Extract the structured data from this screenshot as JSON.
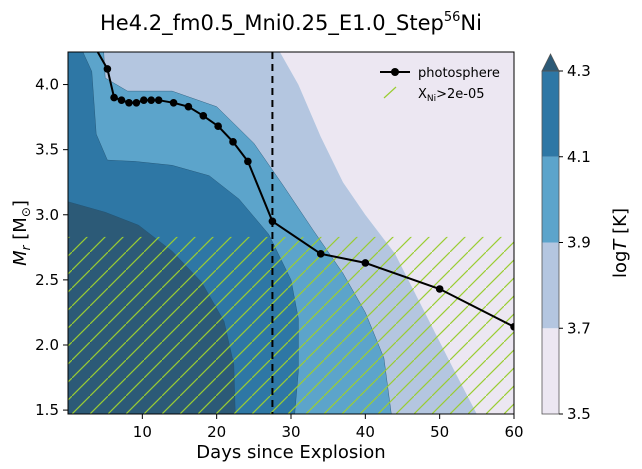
{
  "chart_data": {
    "type": "contour",
    "title": "He4.2_fm0.5_Mni0.25_E1.0_Step",
    "title_sup": "56",
    "title_tail": "Ni",
    "xlabel": "Days since Explosion",
    "ylabel_main": "M",
    "ylabel_sub": "r",
    "ylabel_unit": "[M",
    "ylabel_unit_sub": "⊙",
    "ylabel_close": "]",
    "xlim": [
      0,
      60
    ],
    "ylim": [
      1.47,
      4.25
    ],
    "xticks": [
      "10",
      "20",
      "30",
      "40",
      "50",
      "60"
    ],
    "xtick_values": [
      10,
      20,
      30,
      40,
      50,
      60
    ],
    "yticks": [
      "1.5",
      "2.0",
      "2.5",
      "3.0",
      "3.5",
      "4.0"
    ],
    "ytick_values": [
      1.5,
      2.0,
      2.5,
      3.0,
      3.5,
      4.0
    ],
    "colorbar": {
      "label_pre": "log",
      "label_var": "T",
      "label_unit": "[K]",
      "levels": [
        3.5,
        3.7,
        3.9,
        4.1,
        4.3
      ],
      "tick_labels": [
        "3.5",
        "3.7",
        "3.9",
        "4.1",
        "4.3"
      ],
      "colors": [
        "#ece7f2",
        "#b4c6e0",
        "#5ca4cb",
        "#2e77a5",
        "#2c5a77"
      ],
      "extend": "max"
    },
    "contour_regions": [
      {
        "level": "3.5-3.7",
        "color": "#ece7f2",
        "boundary": [
          [
            28.5,
            4.25
          ],
          [
            31,
            4.0
          ],
          [
            34,
            3.6
          ],
          [
            37,
            3.25
          ],
          [
            40,
            3.0
          ],
          [
            44,
            2.7
          ],
          [
            48,
            2.25
          ],
          [
            52,
            1.8
          ],
          [
            55,
            1.47
          ],
          [
            60,
            1.47
          ],
          [
            60,
            4.25
          ]
        ]
      },
      {
        "level": "3.7-3.9",
        "color": "#b4c6e0",
        "boundary": [
          [
            0,
            4.25
          ],
          [
            28.5,
            4.25
          ],
          [
            31,
            4.0
          ],
          [
            34,
            3.6
          ],
          [
            37,
            3.25
          ],
          [
            40,
            3.0
          ],
          [
            44,
            2.7
          ],
          [
            48,
            2.25
          ],
          [
            52,
            1.8
          ],
          [
            55,
            1.47
          ],
          [
            0,
            1.47
          ]
        ]
      },
      {
        "level": "3.9-4.1",
        "color": "#5ca4cb",
        "boundary": [
          [
            0,
            4.25
          ],
          [
            4.8,
            4.25
          ],
          [
            5,
            4.05
          ],
          [
            8,
            3.95
          ],
          [
            14,
            3.95
          ],
          [
            20,
            3.83
          ],
          [
            25,
            3.55
          ],
          [
            29,
            3.22
          ],
          [
            33,
            2.88
          ],
          [
            37,
            2.55
          ],
          [
            40,
            2.25
          ],
          [
            42.5,
            1.9
          ],
          [
            43.5,
            1.47
          ],
          [
            0,
            1.47
          ]
        ]
      },
      {
        "level": "4.1-4.3",
        "color": "#2e77a5",
        "boundary": [
          [
            0,
            4.25
          ],
          [
            2,
            4.25
          ],
          [
            3.2,
            4.1
          ],
          [
            3.8,
            3.62
          ],
          [
            5.3,
            3.42
          ],
          [
            9,
            3.41
          ],
          [
            14,
            3.38
          ],
          [
            19,
            3.3
          ],
          [
            23,
            3.12
          ],
          [
            27,
            2.85
          ],
          [
            30,
            2.5
          ],
          [
            31,
            2.2
          ],
          [
            31,
            1.8
          ],
          [
            30.5,
            1.47
          ],
          [
            0,
            1.47
          ]
        ]
      },
      {
        "level": ">4.3",
        "color": "#2c5a77",
        "boundary": [
          [
            0,
            3.1
          ],
          [
            5,
            3.02
          ],
          [
            9.5,
            2.92
          ],
          [
            14,
            2.72
          ],
          [
            18,
            2.48
          ],
          [
            21,
            2.18
          ],
          [
            22.3,
            1.85
          ],
          [
            22.5,
            1.47
          ],
          [
            0,
            1.47
          ]
        ]
      }
    ],
    "hatch_region": {
      "label": "X",
      "label_sub": "Ni",
      "label_tail": ">2e-05",
      "color": "#9acd32",
      "x": [
        0,
        60
      ],
      "y": [
        1.47,
        2.83
      ]
    },
    "vline": {
      "x": 27.5,
      "style": "dashed"
    },
    "series": [
      {
        "name": "photosphere",
        "x": [
          3.5,
          5.3,
          6.2,
          7.2,
          8.2,
          9.2,
          10.2,
          11.2,
          12.2,
          14.2,
          16.2,
          18.2,
          20.2,
          22.2,
          24.2,
          27.5,
          34,
          40,
          50,
          60
        ],
        "y": [
          4.3,
          4.12,
          3.9,
          3.88,
          3.86,
          3.86,
          3.88,
          3.88,
          3.88,
          3.86,
          3.83,
          3.76,
          3.68,
          3.56,
          3.41,
          2.95,
          2.7,
          2.63,
          2.43,
          2.14
        ]
      }
    ],
    "legend": {
      "placement": "top-right"
    },
    "grid": false
  }
}
